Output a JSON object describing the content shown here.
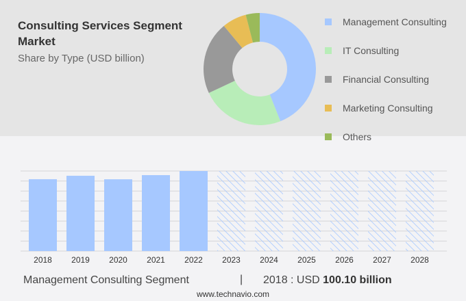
{
  "title": "Consulting Services Segment Market",
  "subtitle": "Share by Type (USD billion)",
  "colors": {
    "bar": "#a6c8ff",
    "hatch": "#a6c8ff",
    "grid": "#d5d5d8"
  },
  "chart_data": [
    {
      "type": "pie",
      "variant": "donut",
      "categories": [
        "Management Consulting",
        "IT Consulting",
        "Financial Consulting",
        "Marketing Consulting",
        "Others"
      ],
      "values": [
        44,
        24,
        21,
        7,
        4
      ],
      "unit": "%",
      "colors": [
        "#a6c8ff",
        "#b8edb8",
        "#999999",
        "#e8bd55",
        "#9aba5a"
      ],
      "legend": "right"
    },
    {
      "type": "bar",
      "categories": [
        "2018",
        "2019",
        "2020",
        "2021",
        "2022",
        "2023",
        "2024",
        "2025",
        "2026",
        "2027",
        "2028"
      ],
      "values": [
        100.1,
        104.9,
        100.0,
        105.8,
        111.5,
        null,
        null,
        null,
        null,
        null,
        null
      ],
      "forecast": [
        "2023",
        "2024",
        "2025",
        "2026",
        "2027",
        "2028"
      ],
      "ylim": [
        0,
        111.5
      ],
      "grid": true
    }
  ],
  "footer": {
    "segment": "Management Consulting Segment",
    "separator": "|",
    "value_prefix": "2018 : USD ",
    "value_bold": "100.10 billion",
    "site": "www.technavio.com"
  }
}
